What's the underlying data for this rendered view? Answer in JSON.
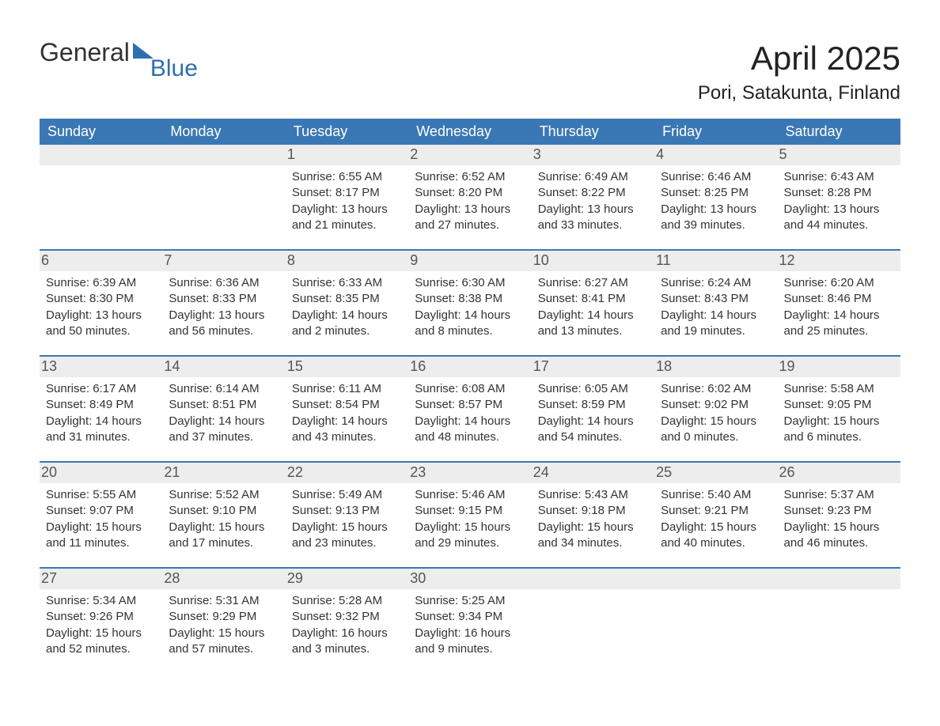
{
  "brand": {
    "word1": "General",
    "word2": "Blue",
    "accent_color": "#2f6fb0",
    "text_color": "#333333"
  },
  "header": {
    "title": "April 2025",
    "location": "Pori, Satakunta, Finland"
  },
  "colors": {
    "header_bg": "#3a78b5",
    "header_text": "#ffffff",
    "daynum_bg": "#ededed",
    "daynum_text": "#555555",
    "body_text": "#333333",
    "week_border": "#3a78b5",
    "page_bg": "#ffffff"
  },
  "fonts": {
    "title_size_pt": 42,
    "location_size_pt": 24,
    "dayheader_size_pt": 18,
    "daynum_size_pt": 18,
    "cell_size_pt": 15
  },
  "day_headers": [
    "Sunday",
    "Monday",
    "Tuesday",
    "Wednesday",
    "Thursday",
    "Friday",
    "Saturday"
  ],
  "weeks": [
    [
      null,
      null,
      {
        "n": "1",
        "sunrise": "Sunrise: 6:55 AM",
        "sunset": "Sunset: 8:17 PM",
        "d1": "Daylight: 13 hours",
        "d2": "and 21 minutes."
      },
      {
        "n": "2",
        "sunrise": "Sunrise: 6:52 AM",
        "sunset": "Sunset: 8:20 PM",
        "d1": "Daylight: 13 hours",
        "d2": "and 27 minutes."
      },
      {
        "n": "3",
        "sunrise": "Sunrise: 6:49 AM",
        "sunset": "Sunset: 8:22 PM",
        "d1": "Daylight: 13 hours",
        "d2": "and 33 minutes."
      },
      {
        "n": "4",
        "sunrise": "Sunrise: 6:46 AM",
        "sunset": "Sunset: 8:25 PM",
        "d1": "Daylight: 13 hours",
        "d2": "and 39 minutes."
      },
      {
        "n": "5",
        "sunrise": "Sunrise: 6:43 AM",
        "sunset": "Sunset: 8:28 PM",
        "d1": "Daylight: 13 hours",
        "d2": "and 44 minutes."
      }
    ],
    [
      {
        "n": "6",
        "sunrise": "Sunrise: 6:39 AM",
        "sunset": "Sunset: 8:30 PM",
        "d1": "Daylight: 13 hours",
        "d2": "and 50 minutes."
      },
      {
        "n": "7",
        "sunrise": "Sunrise: 6:36 AM",
        "sunset": "Sunset: 8:33 PM",
        "d1": "Daylight: 13 hours",
        "d2": "and 56 minutes."
      },
      {
        "n": "8",
        "sunrise": "Sunrise: 6:33 AM",
        "sunset": "Sunset: 8:35 PM",
        "d1": "Daylight: 14 hours",
        "d2": "and 2 minutes."
      },
      {
        "n": "9",
        "sunrise": "Sunrise: 6:30 AM",
        "sunset": "Sunset: 8:38 PM",
        "d1": "Daylight: 14 hours",
        "d2": "and 8 minutes."
      },
      {
        "n": "10",
        "sunrise": "Sunrise: 6:27 AM",
        "sunset": "Sunset: 8:41 PM",
        "d1": "Daylight: 14 hours",
        "d2": "and 13 minutes."
      },
      {
        "n": "11",
        "sunrise": "Sunrise: 6:24 AM",
        "sunset": "Sunset: 8:43 PM",
        "d1": "Daylight: 14 hours",
        "d2": "and 19 minutes."
      },
      {
        "n": "12",
        "sunrise": "Sunrise: 6:20 AM",
        "sunset": "Sunset: 8:46 PM",
        "d1": "Daylight: 14 hours",
        "d2": "and 25 minutes."
      }
    ],
    [
      {
        "n": "13",
        "sunrise": "Sunrise: 6:17 AM",
        "sunset": "Sunset: 8:49 PM",
        "d1": "Daylight: 14 hours",
        "d2": "and 31 minutes."
      },
      {
        "n": "14",
        "sunrise": "Sunrise: 6:14 AM",
        "sunset": "Sunset: 8:51 PM",
        "d1": "Daylight: 14 hours",
        "d2": "and 37 minutes."
      },
      {
        "n": "15",
        "sunrise": "Sunrise: 6:11 AM",
        "sunset": "Sunset: 8:54 PM",
        "d1": "Daylight: 14 hours",
        "d2": "and 43 minutes."
      },
      {
        "n": "16",
        "sunrise": "Sunrise: 6:08 AM",
        "sunset": "Sunset: 8:57 PM",
        "d1": "Daylight: 14 hours",
        "d2": "and 48 minutes."
      },
      {
        "n": "17",
        "sunrise": "Sunrise: 6:05 AM",
        "sunset": "Sunset: 8:59 PM",
        "d1": "Daylight: 14 hours",
        "d2": "and 54 minutes."
      },
      {
        "n": "18",
        "sunrise": "Sunrise: 6:02 AM",
        "sunset": "Sunset: 9:02 PM",
        "d1": "Daylight: 15 hours",
        "d2": "and 0 minutes."
      },
      {
        "n": "19",
        "sunrise": "Sunrise: 5:58 AM",
        "sunset": "Sunset: 9:05 PM",
        "d1": "Daylight: 15 hours",
        "d2": "and 6 minutes."
      }
    ],
    [
      {
        "n": "20",
        "sunrise": "Sunrise: 5:55 AM",
        "sunset": "Sunset: 9:07 PM",
        "d1": "Daylight: 15 hours",
        "d2": "and 11 minutes."
      },
      {
        "n": "21",
        "sunrise": "Sunrise: 5:52 AM",
        "sunset": "Sunset: 9:10 PM",
        "d1": "Daylight: 15 hours",
        "d2": "and 17 minutes."
      },
      {
        "n": "22",
        "sunrise": "Sunrise: 5:49 AM",
        "sunset": "Sunset: 9:13 PM",
        "d1": "Daylight: 15 hours",
        "d2": "and 23 minutes."
      },
      {
        "n": "23",
        "sunrise": "Sunrise: 5:46 AM",
        "sunset": "Sunset: 9:15 PM",
        "d1": "Daylight: 15 hours",
        "d2": "and 29 minutes."
      },
      {
        "n": "24",
        "sunrise": "Sunrise: 5:43 AM",
        "sunset": "Sunset: 9:18 PM",
        "d1": "Daylight: 15 hours",
        "d2": "and 34 minutes."
      },
      {
        "n": "25",
        "sunrise": "Sunrise: 5:40 AM",
        "sunset": "Sunset: 9:21 PM",
        "d1": "Daylight: 15 hours",
        "d2": "and 40 minutes."
      },
      {
        "n": "26",
        "sunrise": "Sunrise: 5:37 AM",
        "sunset": "Sunset: 9:23 PM",
        "d1": "Daylight: 15 hours",
        "d2": "and 46 minutes."
      }
    ],
    [
      {
        "n": "27",
        "sunrise": "Sunrise: 5:34 AM",
        "sunset": "Sunset: 9:26 PM",
        "d1": "Daylight: 15 hours",
        "d2": "and 52 minutes."
      },
      {
        "n": "28",
        "sunrise": "Sunrise: 5:31 AM",
        "sunset": "Sunset: 9:29 PM",
        "d1": "Daylight: 15 hours",
        "d2": "and 57 minutes."
      },
      {
        "n": "29",
        "sunrise": "Sunrise: 5:28 AM",
        "sunset": "Sunset: 9:32 PM",
        "d1": "Daylight: 16 hours",
        "d2": "and 3 minutes."
      },
      {
        "n": "30",
        "sunrise": "Sunrise: 5:25 AM",
        "sunset": "Sunset: 9:34 PM",
        "d1": "Daylight: 16 hours",
        "d2": "and 9 minutes."
      },
      null,
      null,
      null
    ]
  ]
}
